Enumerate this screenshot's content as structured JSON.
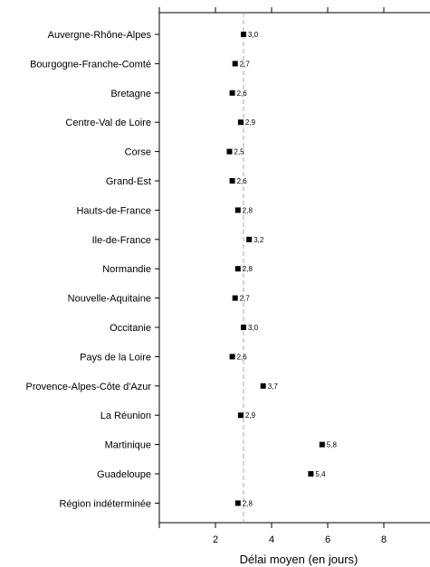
{
  "chart_data": {
    "type": "scatter",
    "orientation": "horizontal",
    "xlabel": "Délai moyen (en jours)",
    "xlim": [
      0,
      9.8
    ],
    "xticks": [
      2,
      4,
      6,
      8
    ],
    "reference_line": 3.0,
    "grid": false,
    "marker": "square",
    "marker_color": "#000000",
    "reference_line_color": "#aaaaaa",
    "categories": [
      "Auvergne-Rhône-Alpes",
      "Bourgogne-Franche-Comté",
      "Bretagne",
      "Centre-Val de Loire",
      "Corse",
      "Grand-Est",
      "Hauts-de-France",
      "Ile-de-France",
      "Normandie",
      "Nouvelle-Aquitaine",
      "Occitanie",
      "Pays de la Loire",
      "Provence-Alpes-Côte d'Azur",
      "La Réunion",
      "Martinique",
      "Guadeloupe",
      "Région indéterminée"
    ],
    "values": [
      3.0,
      2.7,
      2.6,
      2.9,
      2.5,
      2.6,
      2.8,
      3.2,
      2.8,
      2.7,
      3.0,
      2.6,
      3.7,
      2.9,
      5.8,
      5.4,
      2.8
    ],
    "value_labels": [
      "3,0",
      "2,7",
      "2,6",
      "2,9",
      "2,5",
      "2,6",
      "2,8",
      "3,2",
      "2,8",
      "2,7",
      "3,0",
      "2,6",
      "3,7",
      "2,9",
      "5,8",
      "5,4",
      "2,8"
    ]
  }
}
